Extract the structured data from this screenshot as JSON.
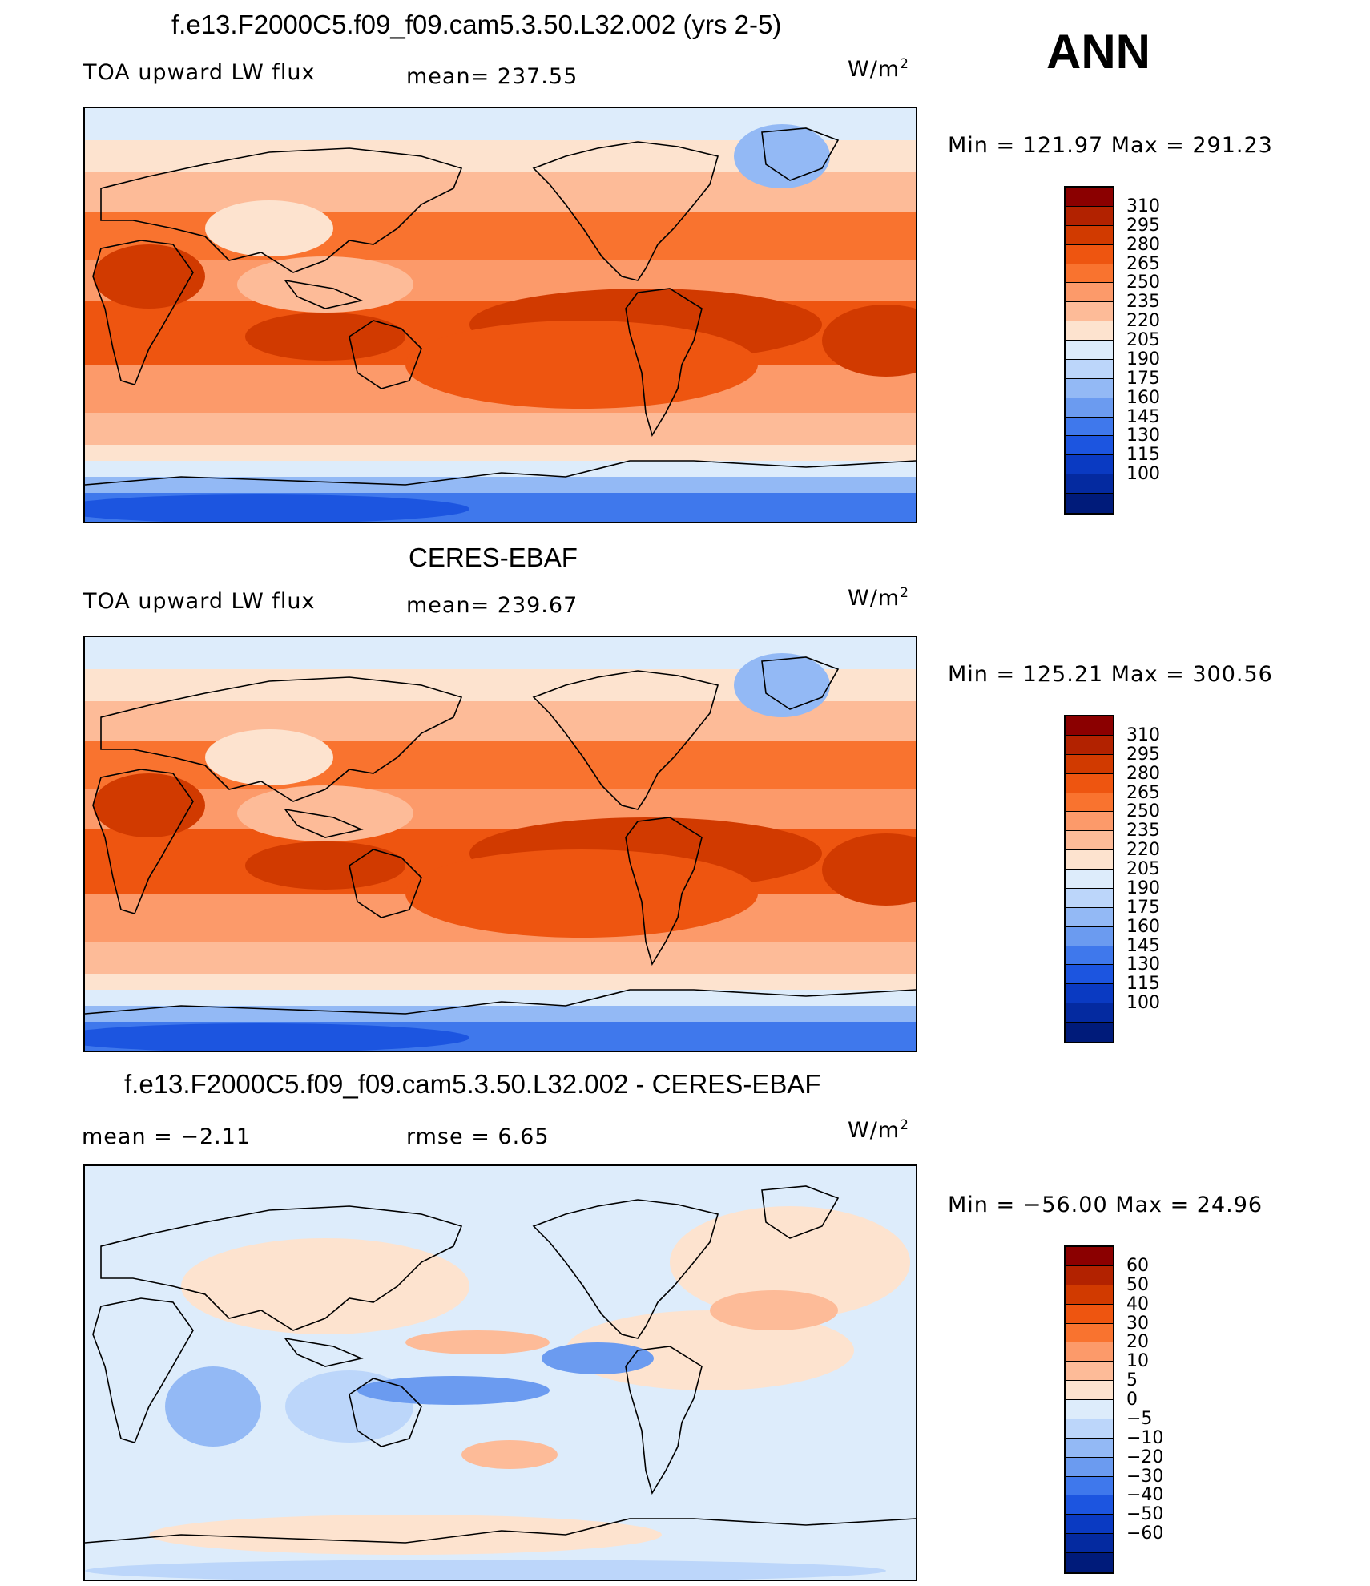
{
  "season": "ANN",
  "panels": [
    {
      "title": "f.e13.F2000C5.f09_f09.cam5.3.50.L32.002 (yrs 2-5)",
      "left_label": "TOA upward LW flux",
      "center_label": "mean= 237.55",
      "units_label": "W/m",
      "units_exp": "2",
      "minmax": "Min = 121.97 Max = 291.23",
      "colorbar": {
        "ticks": [
          "310",
          "295",
          "280",
          "265",
          "250",
          "235",
          "220",
          "205",
          "190",
          "175",
          "160",
          "145",
          "130",
          "115",
          "100"
        ],
        "colors": [
          "#8b0000",
          "#b22200",
          "#d13a00",
          "#ee5510",
          "#f9732f",
          "#fc9a6a",
          "#fdbb98",
          "#fde3cf",
          "#ddecfb",
          "#bcd6fa",
          "#93b9f5",
          "#6b9bf0",
          "#3f78ec",
          "#1c55e0",
          "#0a3ac2",
          "#042aa0",
          "#001b7a"
        ]
      }
    },
    {
      "title": "CERES-EBAF",
      "left_label": "TOA upward LW flux",
      "center_label": "mean= 239.67",
      "units_label": "W/m",
      "units_exp": "2",
      "minmax": "Min = 125.21 Max = 300.56",
      "colorbar": {
        "ticks": [
          "310",
          "295",
          "280",
          "265",
          "250",
          "235",
          "220",
          "205",
          "190",
          "175",
          "160",
          "145",
          "130",
          "115",
          "100"
        ],
        "colors": [
          "#8b0000",
          "#b22200",
          "#d13a00",
          "#ee5510",
          "#f9732f",
          "#fc9a6a",
          "#fdbb98",
          "#fde3cf",
          "#ddecfb",
          "#bcd6fa",
          "#93b9f5",
          "#6b9bf0",
          "#3f78ec",
          "#1c55e0",
          "#0a3ac2",
          "#042aa0",
          "#001b7a"
        ]
      }
    },
    {
      "title": "f.e13.F2000C5.f09_f09.cam5.3.50.L32.002 - CERES-EBAF",
      "left_label": "mean =   −2.11",
      "center_label": "rmse =    6.65",
      "units_label": "W/m",
      "units_exp": "2",
      "minmax": "Min = −56.00 Max =   24.96",
      "colorbar": {
        "ticks": [
          "60",
          "50",
          "40",
          "30",
          "20",
          "10",
          "5",
          "0",
          "−5",
          "−10",
          "−20",
          "−30",
          "−40",
          "−50",
          "−60"
        ],
        "colors": [
          "#8b0000",
          "#b22200",
          "#d13a00",
          "#ee5510",
          "#f9732f",
          "#fc9a6a",
          "#fdbb98",
          "#fde3cf",
          "#ddecfb",
          "#bcd6fa",
          "#93b9f5",
          "#6b9bf0",
          "#3f78ec",
          "#1c55e0",
          "#0a3ac2",
          "#042aa0",
          "#001b7a"
        ]
      }
    }
  ]
}
